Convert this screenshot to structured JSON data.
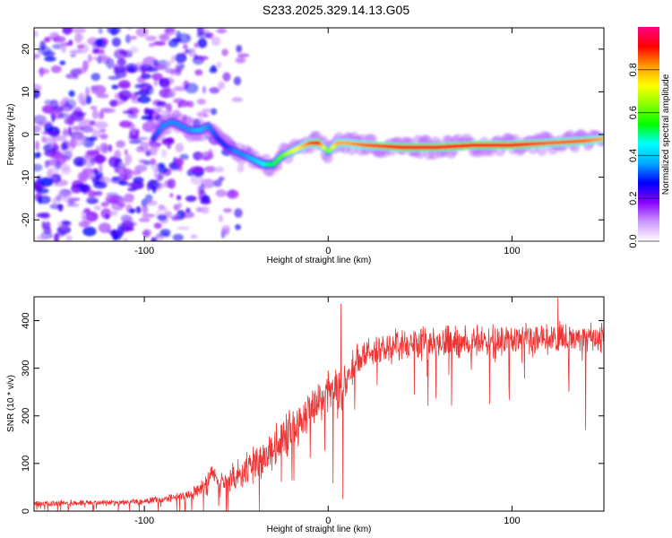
{
  "title": "S233.2025.329.14.13.G05",
  "chart_data": [
    {
      "type": "heatmap",
      "xlabel": "Height of straight line (km)",
      "ylabel": "Frequency (Hz)",
      "xlim": [
        -160,
        150
      ],
      "ylim": [
        -25,
        25
      ],
      "xticks": [
        -100,
        0,
        100
      ],
      "yticks": [
        -20,
        -10,
        0,
        10,
        20
      ],
      "ridge": {
        "x": [
          -95,
          -90,
          -85,
          -80,
          -75,
          -70,
          -65,
          -60,
          -55,
          -50,
          -45,
          -40,
          -35,
          -30,
          -25,
          -20,
          -15,
          -10,
          -5,
          0,
          5,
          10,
          20,
          40,
          60,
          80,
          100,
          120,
          140,
          150
        ],
        "y": [
          -1,
          2,
          3,
          2,
          1,
          1,
          2,
          -1,
          -3,
          -4,
          -5,
          -6,
          -7,
          -7,
          -5,
          -4,
          -3,
          -2,
          -2,
          -4,
          -2,
          -2,
          -2.5,
          -3,
          -3,
          -2.5,
          -2.5,
          -2,
          -1.5,
          -1
        ],
        "amplitude": [
          0.3,
          0.35,
          0.35,
          0.35,
          0.35,
          0.4,
          0.35,
          0.3,
          0.3,
          0.35,
          0.35,
          0.4,
          0.45,
          0.55,
          0.6,
          0.7,
          0.75,
          0.85,
          0.9,
          0.6,
          0.8,
          0.8,
          0.85,
          0.9,
          0.9,
          0.9,
          0.9,
          0.85,
          0.85,
          0.8
        ]
      },
      "colorbar": {
        "label": "Normalized spectral amplitude",
        "range": [
          0.0,
          1.0
        ],
        "ticks": [
          "0.0",
          "0.2",
          "0.4",
          "0.6",
          "0.8"
        ],
        "colors": [
          "#ffffff",
          "#cc99ff",
          "#8800ff",
          "#0000ff",
          "#00aaff",
          "#00ffff",
          "#00ff00",
          "#88ff00",
          "#ffff00",
          "#ff9900",
          "#ff0000",
          "#ff0088"
        ]
      }
    },
    {
      "type": "line",
      "xlabel": "Height of straight line (km)",
      "ylabel": "SNR (10 * v/v)",
      "xlim": [
        -160,
        150
      ],
      "ylim": [
        0,
        450
      ],
      "xticks": [
        -100,
        0,
        100
      ],
      "yticks": [
        0,
        100,
        200,
        300,
        400
      ],
      "color": "#ee3333",
      "envelope": {
        "x": [
          -160,
          -140,
          -120,
          -100,
          -90,
          -80,
          -70,
          -65,
          -60,
          -50,
          -40,
          -30,
          -20,
          -10,
          -5,
          0,
          5,
          7,
          10,
          15,
          20,
          25,
          30,
          40,
          60,
          80,
          100,
          120,
          140,
          150
        ],
        "mean": [
          15,
          17,
          18,
          20,
          25,
          30,
          45,
          70,
          60,
          70,
          100,
          130,
          170,
          200,
          230,
          250,
          270,
          240,
          280,
          310,
          330,
          340,
          345,
          350,
          355,
          355,
          360,
          360,
          365,
          365
        ],
        "spread": [
          8,
          8,
          8,
          8,
          10,
          12,
          20,
          40,
          30,
          40,
          50,
          50,
          55,
          60,
          60,
          60,
          60,
          80,
          50,
          45,
          40,
          40,
          40,
          40,
          40,
          40,
          40,
          40,
          40,
          40
        ]
      },
      "peaks": [
        {
          "x": 7,
          "y": 435
        },
        {
          "x": 8,
          "y": 25
        },
        {
          "x": 125,
          "y": 448
        },
        {
          "x": 140,
          "y": 170
        }
      ]
    }
  ]
}
